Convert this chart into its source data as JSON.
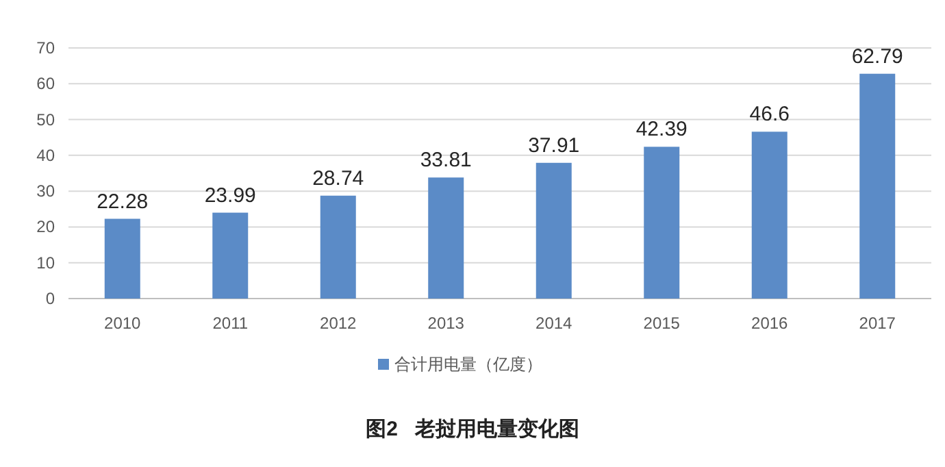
{
  "chart_data": {
    "type": "bar",
    "title": "图2   老挝用电量变化图",
    "categories": [
      "2010",
      "2011",
      "2012",
      "2013",
      "2014",
      "2015",
      "2016",
      "2017"
    ],
    "series": [
      {
        "name": "合计用电量（亿度）",
        "color": "#5b8bc7",
        "values": [
          22.28,
          23.99,
          28.74,
          33.81,
          37.91,
          42.39,
          46.6,
          62.79
        ]
      }
    ],
    "ylim": [
      0,
      70
    ],
    "yticks": [
      0,
      10,
      20,
      30,
      40,
      50,
      60,
      70
    ],
    "grid": "y",
    "legend": "bottom",
    "data_labels": true
  }
}
